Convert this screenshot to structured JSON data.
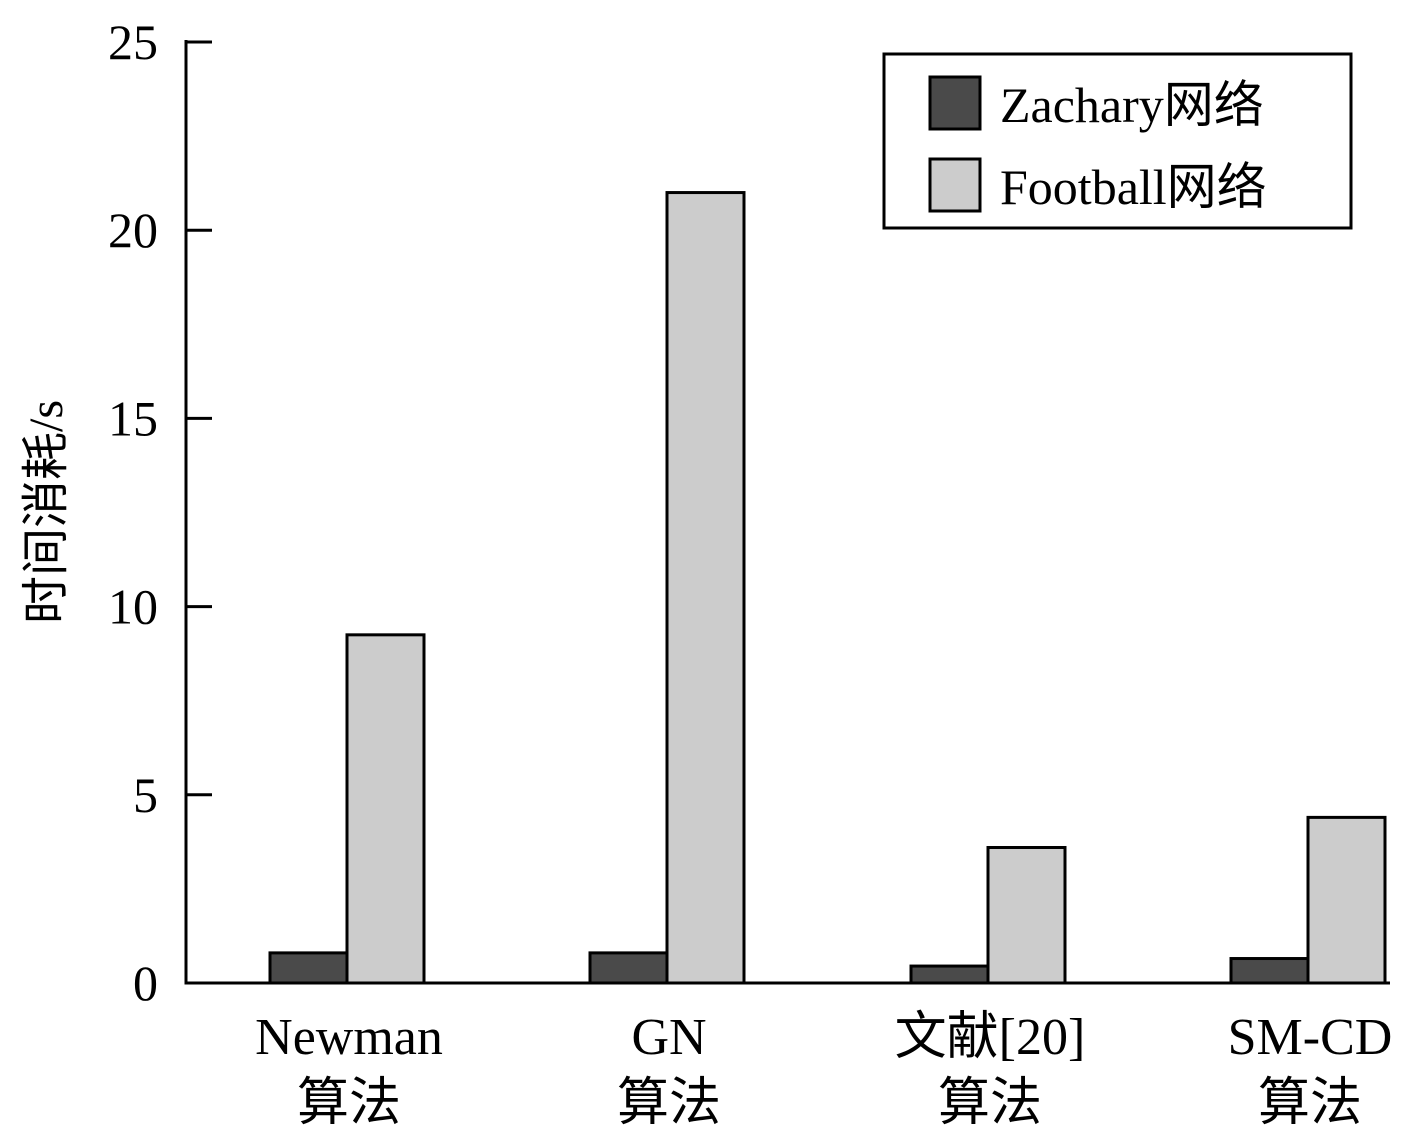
{
  "chart_data": {
    "type": "bar",
    "title": "",
    "xlabel": "",
    "ylabel": "时间消耗/s",
    "ylim": [
      0,
      25
    ],
    "yticks": [
      "0",
      "5",
      "10",
      "15",
      "20",
      "25"
    ],
    "categories": [
      [
        "Newman",
        "算法"
      ],
      [
        "GN",
        "算法"
      ],
      [
        "文献[20]",
        "算法"
      ],
      [
        "SM-CD",
        "算法"
      ]
    ],
    "series": [
      {
        "name": "Zachary网络",
        "color": "#4a4a4a",
        "values": [
          0.8,
          0.8,
          0.45,
          0.65
        ]
      },
      {
        "name": "Football网络",
        "color": "#cccccc",
        "values": [
          9.25,
          21.0,
          3.6,
          4.4
        ]
      }
    ],
    "grid": false,
    "legend": "top-right"
  }
}
